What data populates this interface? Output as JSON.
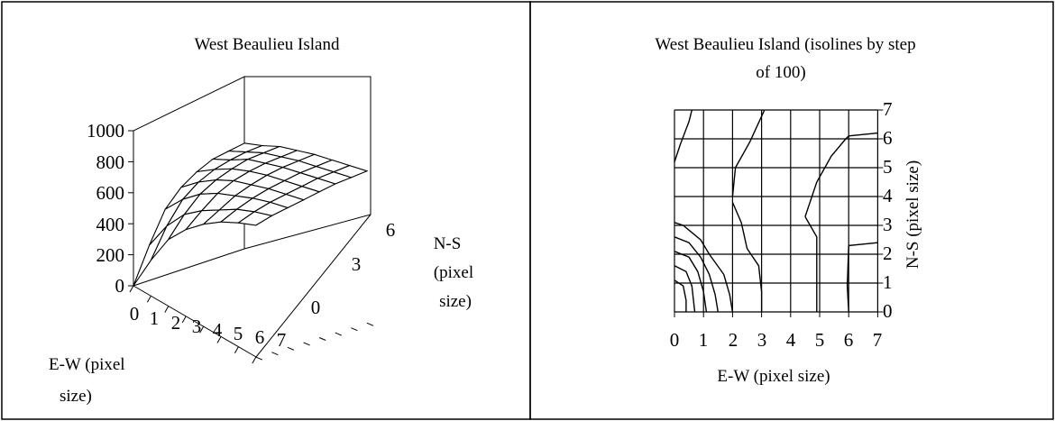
{
  "chart_data": [
    {
      "type": "surface3d",
      "title": "West Beaulieu Island",
      "xlabel": [
        "E-W (pixel",
        "size)"
      ],
      "ylabel": [
        "N-S",
        "(pixel",
        "size)"
      ],
      "zlim": [
        0,
        1000
      ],
      "z_ticks": [
        "0",
        "200",
        "400",
        "600",
        "800",
        "1000"
      ],
      "x_ticks": [
        "0",
        "1",
        "2",
        "3",
        "4",
        "5",
        "6",
        "7"
      ],
      "y_ticks": [
        "0",
        "3",
        "6"
      ],
      "x": [
        0,
        1,
        2,
        3,
        4,
        5,
        6,
        7
      ],
      "y": [
        0,
        1,
        2,
        3,
        4,
        5,
        6,
        7
      ],
      "z": [
        [
          0,
          230,
          430,
          540,
          610,
          660,
          680,
          700
        ],
        [
          230,
          420,
          560,
          640,
          690,
          720,
          740,
          750
        ],
        [
          430,
          560,
          660,
          720,
          760,
          790,
          800,
          810
        ],
        [
          560,
          650,
          730,
          780,
          810,
          830,
          840,
          850
        ],
        [
          660,
          720,
          780,
          820,
          850,
          870,
          880,
          890
        ],
        [
          740,
          790,
          830,
          860,
          880,
          900,
          910,
          920
        ],
        [
          800,
          840,
          870,
          890,
          910,
          930,
          940,
          950
        ],
        [
          850,
          880,
          900,
          920,
          940,
          960,
          970,
          980
        ]
      ],
      "grid": true
    },
    {
      "type": "contour",
      "title": [
        "West Beaulieu Island (isolines by step",
        "of 100)"
      ],
      "xlabel": "E-W (pixel size)",
      "ylabel": "N-S (pixel size)",
      "xlim": [
        0,
        7
      ],
      "ylim": [
        0,
        7
      ],
      "x_ticks": [
        "0",
        "1",
        "2",
        "3",
        "4",
        "5",
        "6",
        "7"
      ],
      "y_ticks": [
        "0",
        "1",
        "2",
        "3",
        "4",
        "5",
        "6",
        "7"
      ],
      "contour_step": 100,
      "grid": true,
      "isolines": [
        [
          [
            0.0,
            3.1
          ],
          [
            0.3,
            3.0
          ],
          [
            0.9,
            2.5
          ],
          [
            1.2,
            2.0
          ],
          [
            1.7,
            1.3
          ],
          [
            1.9,
            0.6
          ],
          [
            2.0,
            0.0
          ]
        ],
        [
          [
            0.0,
            2.6
          ],
          [
            0.5,
            2.4
          ],
          [
            0.9,
            1.9
          ],
          [
            1.2,
            1.3
          ],
          [
            1.4,
            0.6
          ],
          [
            1.5,
            0.0
          ]
        ],
        [
          [
            0.0,
            2.1
          ],
          [
            0.5,
            1.9
          ],
          [
            0.8,
            1.4
          ],
          [
            1.0,
            0.7
          ],
          [
            1.1,
            0.0
          ]
        ],
        [
          [
            0.0,
            1.6
          ],
          [
            0.4,
            1.4
          ],
          [
            0.6,
            0.9
          ],
          [
            0.7,
            0.0
          ]
        ],
        [
          [
            0.0,
            1.1
          ],
          [
            0.3,
            0.9
          ],
          [
            0.4,
            0.4
          ],
          [
            0.4,
            0.0
          ]
        ],
        [
          [
            0.0,
            5.2
          ],
          [
            0.2,
            5.8
          ],
          [
            0.5,
            6.6
          ],
          [
            0.6,
            7.0
          ]
        ],
        [
          [
            2.0,
            4.0
          ],
          [
            2.1,
            5.0
          ],
          [
            2.6,
            5.9
          ],
          [
            3.1,
            7.0
          ]
        ],
        [
          [
            2.0,
            3.8
          ],
          [
            2.3,
            3.1
          ],
          [
            2.5,
            2.2
          ],
          [
            2.9,
            1.6
          ],
          [
            3.0,
            0.7
          ],
          [
            3.0,
            0.0
          ]
        ],
        [
          [
            4.5,
            3.3
          ],
          [
            4.9,
            4.5
          ],
          [
            5.4,
            5.4
          ],
          [
            5.9,
            6.0
          ],
          [
            6.0,
            6.1
          ],
          [
            7.0,
            6.2
          ]
        ],
        [
          [
            4.5,
            3.3
          ],
          [
            4.9,
            2.6
          ],
          [
            4.9,
            0.0
          ]
        ],
        [
          [
            6.0,
            0.0
          ],
          [
            5.95,
            0.9
          ],
          [
            6.0,
            2.3
          ],
          [
            7.0,
            2.4
          ]
        ]
      ]
    }
  ]
}
